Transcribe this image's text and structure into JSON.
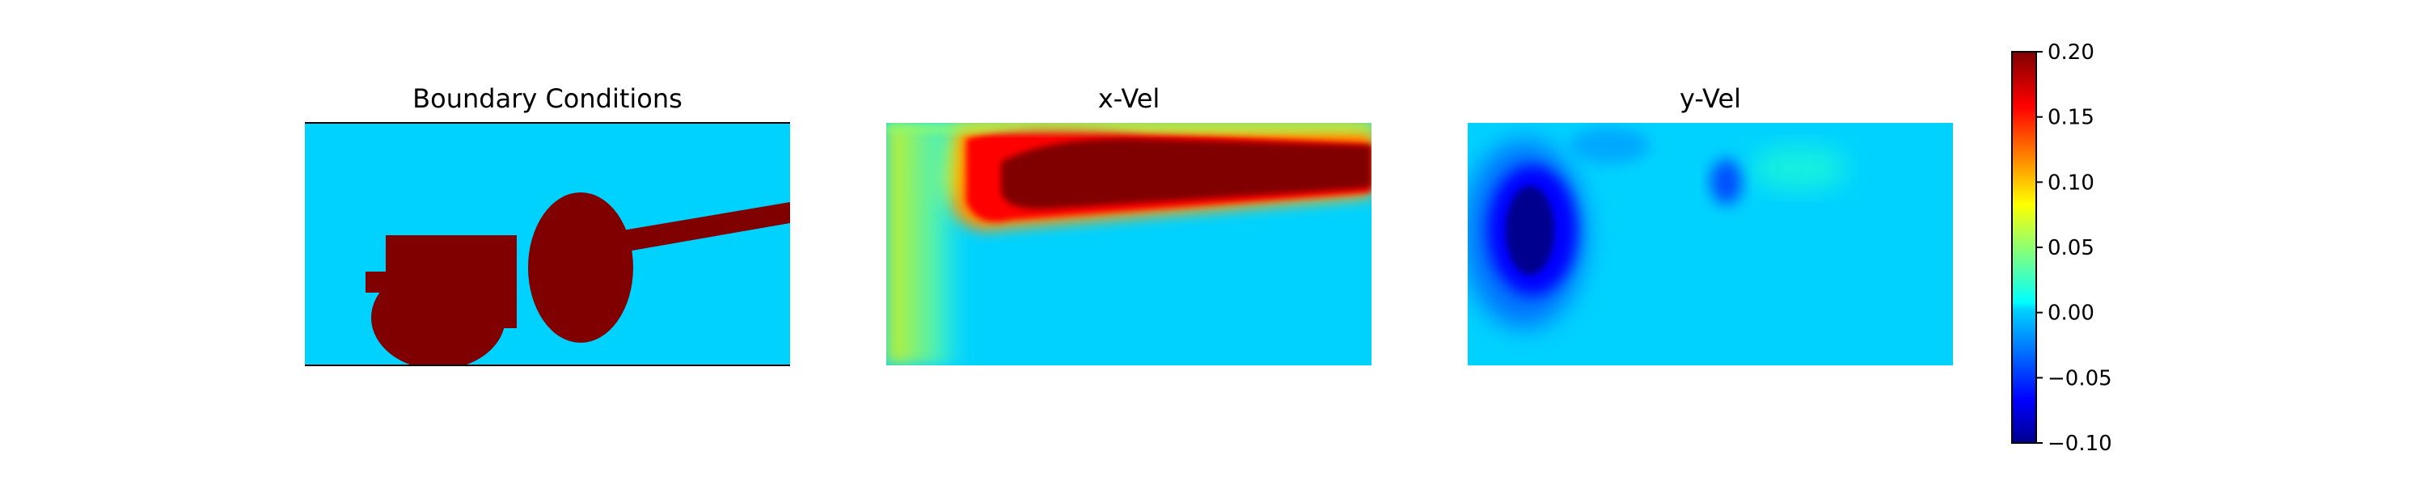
{
  "chart_data": {
    "type": "heatmap",
    "panels": [
      {
        "id": "boundary",
        "title": "Boundary Conditions"
      },
      {
        "id": "xvel",
        "title": "x-Vel"
      },
      {
        "id": "yvel",
        "title": "y-Vel"
      }
    ],
    "colorbar": {
      "colormap": "jet",
      "range": [
        -0.1,
        0.2
      ],
      "ticks": [
        0.2,
        0.15,
        0.1,
        0.05,
        0.0,
        -0.05,
        -0.1
      ],
      "tick_labels": [
        "0.20",
        "0.15",
        "0.10",
        "0.05",
        "0.00",
        "−0.05",
        "−0.10"
      ]
    },
    "colors": {
      "jet_dark_red": "#800000",
      "jet_red": "#ff0000",
      "jet_yellow": "#ffff00",
      "jet_cyan_zero": "#00d2ff",
      "jet_blue": "#0000ff",
      "jet_dark_blue": "#00008f"
    }
  }
}
